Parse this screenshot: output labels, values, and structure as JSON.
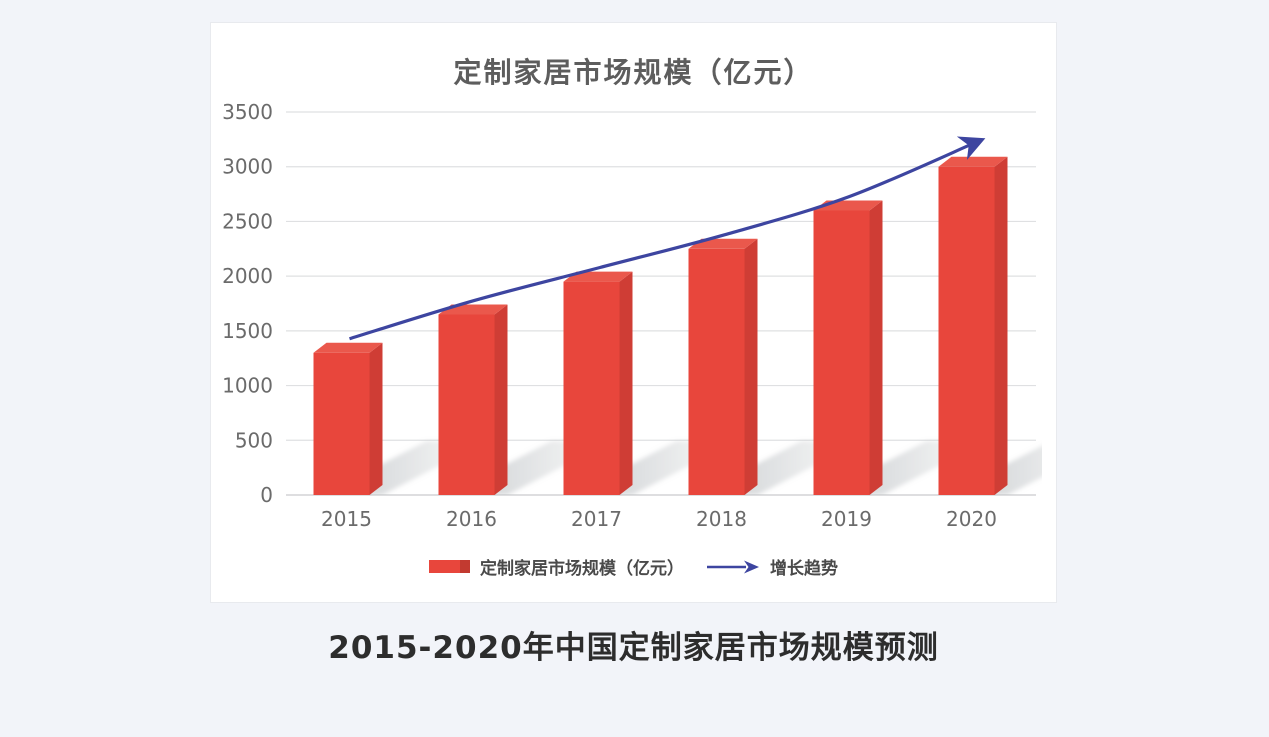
{
  "page": {
    "background_color": "#f2f4f9",
    "caption": "2015-2020年中国定制家居市场规模预测"
  },
  "card": {
    "background_color": "#ffffff"
  },
  "chart_data": {
    "type": "bar",
    "title": "定制家居市场规模（亿元）",
    "categories": [
      "2015",
      "2016",
      "2017",
      "2018",
      "2019",
      "2020"
    ],
    "series": [
      {
        "name": "定制家居市场规模（亿元）",
        "type": "bar-3d",
        "values": [
          1300,
          1650,
          1950,
          2250,
          2600,
          3000
        ],
        "color": "#e8463c",
        "color_side": "#cf3d35",
        "color_top": "#ea584c"
      },
      {
        "name": "增长趋势",
        "type": "trend-arrow",
        "color": "#3d45a0"
      }
    ],
    "xlabel": "",
    "ylabel": "",
    "ylim": [
      0,
      3500
    ],
    "ytick_step": 500,
    "yticks": [
      0,
      500,
      1000,
      1500,
      2000,
      2500,
      3000,
      3500
    ],
    "grid": true,
    "grid_color": "#dfe0e2",
    "axis_line_color": "#c9cbcd",
    "axis_label_color": "#6b6b6b",
    "legend_position": "bottom",
    "shadow_color": "#bcc0c3"
  },
  "legend": {
    "items": [
      {
        "label": "定制家居市场规模（亿元）",
        "swatch": "bar",
        "color": "#e8463c",
        "cap_color": "#c23a30"
      },
      {
        "label": "增长趋势",
        "swatch": "arrow",
        "color": "#3d45a0"
      }
    ]
  }
}
